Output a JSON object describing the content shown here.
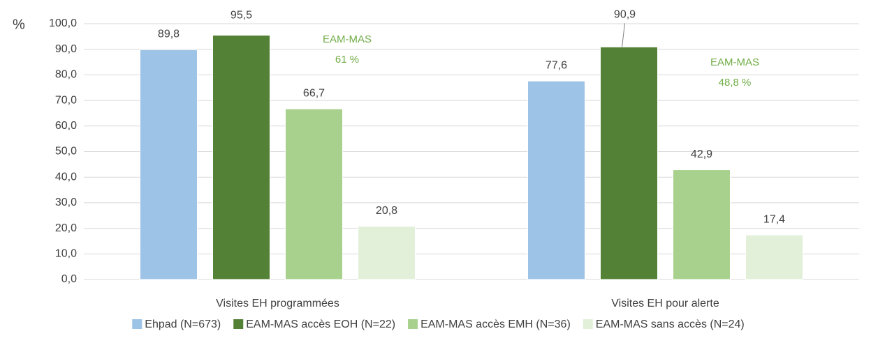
{
  "chart_data": {
    "type": "bar",
    "y_label": "%",
    "categories": [
      "Visites EH programmées",
      "Visites EH pour alerte"
    ],
    "series": [
      {
        "name": "Ehpad (N=673)",
        "color": "#9dc3e6",
        "values": [
          89.8,
          77.6
        ],
        "value_labels": [
          "89,8",
          "77,6"
        ]
      },
      {
        "name": "EAM-MAS accès EOH (N=22)",
        "color": "#538135",
        "values": [
          95.5,
          90.9
        ],
        "value_labels": [
          "95,5",
          "90,9"
        ]
      },
      {
        "name": "EAM-MAS accès EMH (N=36)",
        "color": "#a9d18e",
        "values": [
          66.7,
          42.9
        ],
        "value_labels": [
          "66,7",
          "42,9"
        ]
      },
      {
        "name": "EAM-MAS sans accès (N=24)",
        "color": "#e2f0d9",
        "values": [
          20.8,
          17.4
        ],
        "value_labels": [
          "20,8",
          "17,4"
        ]
      }
    ],
    "annotations": [
      [
        "EAM-MAS",
        "61 %"
      ],
      [
        "EAM-MAS",
        "48,8 %"
      ]
    ],
    "annotation_color": "#70ad47",
    "ylim": [
      0,
      100
    ],
    "yticks": [
      {
        "value": 0,
        "label": "0,0"
      },
      {
        "value": 10,
        "label": "10,0"
      },
      {
        "value": 20,
        "label": "20,0"
      },
      {
        "value": 30,
        "label": "30,0"
      },
      {
        "value": 40,
        "label": "40,0"
      },
      {
        "value": 50,
        "label": "50,0"
      },
      {
        "value": 60,
        "label": "60,0"
      },
      {
        "value": 70,
        "label": "70,0"
      },
      {
        "value": 80,
        "label": "80,0"
      },
      {
        "value": 90,
        "label": "90,0"
      },
      {
        "value": 100,
        "label": "100,0"
      }
    ],
    "grid": true,
    "legend": "bottom"
  }
}
